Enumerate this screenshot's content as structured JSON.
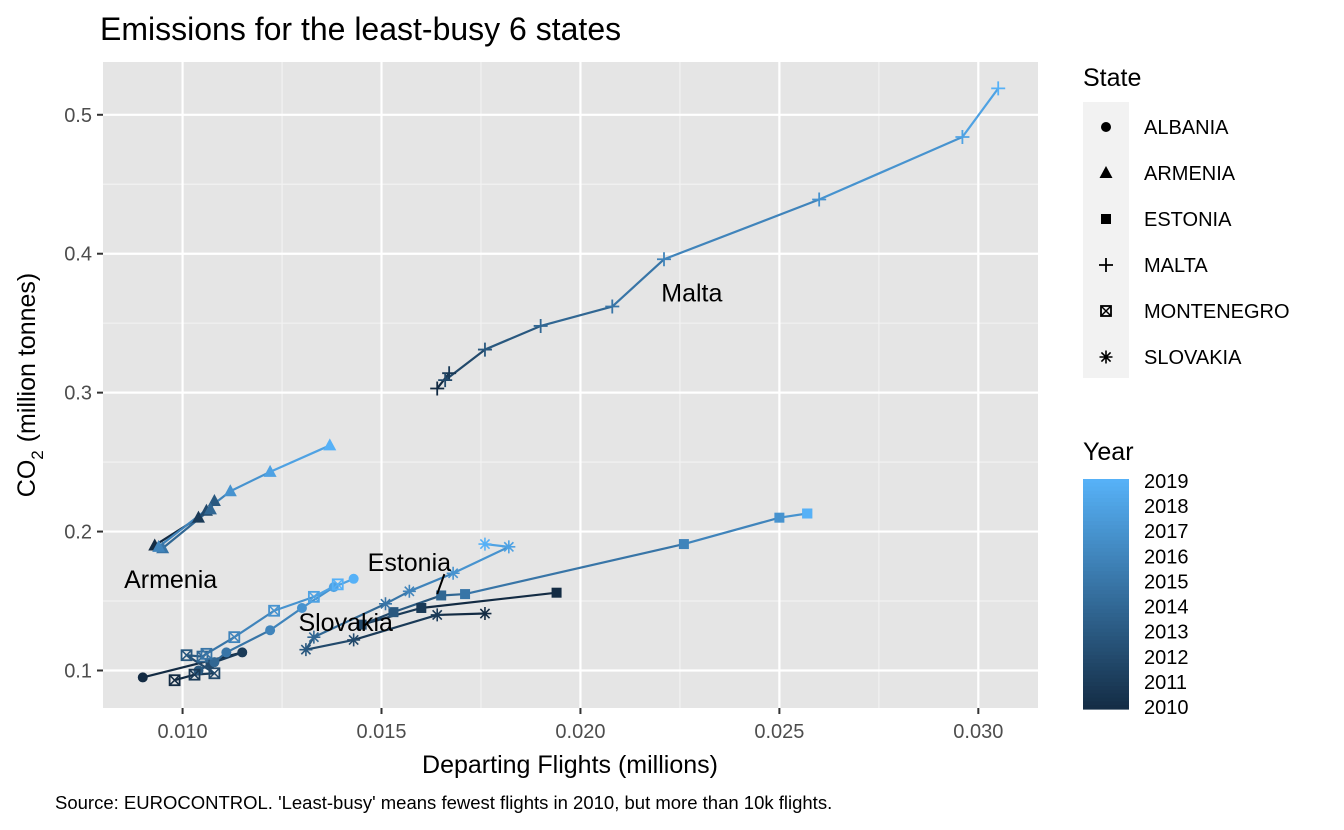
{
  "chart_data": {
    "type": "line",
    "title": "Emissions for the least-busy 6 states",
    "xlabel": "Departing Flights (millions)",
    "ylabel_prefix": "CO",
    "ylabel_sub": "2",
    "ylabel_suffix": "(million tonnes)",
    "caption": "Source: EUROCONTROL. 'Least-busy' means fewest flights in 2010, but more than 10k flights.",
    "xlim": [
      0.008,
      0.0315
    ],
    "ylim": [
      0.073,
      0.538
    ],
    "x_ticks": [
      0.01,
      0.015,
      0.02,
      0.025,
      0.03
    ],
    "x_tick_labels": [
      "0.010",
      "0.015",
      "0.020",
      "0.025",
      "0.030"
    ],
    "y_ticks": [
      0.1,
      0.2,
      0.3,
      0.4,
      0.5
    ],
    "y_tick_labels": [
      "0.1",
      "0.2",
      "0.3",
      "0.4",
      "0.5"
    ],
    "grid": true,
    "shape_legend": {
      "title": "State",
      "entries": [
        {
          "label": "ALBANIA",
          "shape": "circle"
        },
        {
          "label": "ARMENIA",
          "shape": "triangle"
        },
        {
          "label": "ESTONIA",
          "shape": "square"
        },
        {
          "label": "MALTA",
          "shape": "plus"
        },
        {
          "label": "MONTENEGRO",
          "shape": "square-cross"
        },
        {
          "label": "SLOVAKIA",
          "shape": "asterisk"
        }
      ]
    },
    "color_legend": {
      "title": "Year",
      "years": [
        "2019",
        "2018",
        "2017",
        "2016",
        "2015",
        "2014",
        "2013",
        "2012",
        "2011",
        "2010"
      ],
      "low_color": "#132b43",
      "high_color": "#56b1f7"
    },
    "annotations": [
      {
        "text": "Malta",
        "x": 0.0228,
        "y": 0.372
      },
      {
        "text": "Armenia",
        "x": 0.0097,
        "y": 0.166
      },
      {
        "text": "Estonia",
        "x": 0.0157,
        "y": 0.178,
        "arrow_to": [
          0.0164,
          0.155
        ]
      },
      {
        "text": "Slovakia",
        "x": 0.0141,
        "y": 0.135
      }
    ],
    "series": [
      {
        "name": "ALBANIA",
        "shape": "circle",
        "years": [
          2010,
          2011,
          2012,
          2013,
          2014,
          2015,
          2016,
          2017,
          2018,
          2019
        ],
        "x": [
          0.009,
          0.0115,
          0.0107,
          0.0104,
          0.0108,
          0.0111,
          0.0122,
          0.013,
          0.0138,
          0.0143
        ],
        "y": [
          0.095,
          0.113,
          0.105,
          0.1,
          0.106,
          0.113,
          0.129,
          0.145,
          0.16,
          0.166
        ]
      },
      {
        "name": "ARMENIA",
        "shape": "triangle",
        "years": [
          2010,
          2011,
          2012,
          2013,
          2014,
          2015,
          2016,
          2017,
          2018,
          2019
        ],
        "x": [
          0.0093,
          0.0104,
          0.0106,
          0.0108,
          0.0107,
          0.0095,
          0.0094,
          0.0112,
          0.0122,
          0.0137
        ],
        "y": [
          0.19,
          0.21,
          0.215,
          0.222,
          0.216,
          0.188,
          0.189,
          0.229,
          0.243,
          0.262
        ]
      },
      {
        "name": "ESTONIA",
        "shape": "square",
        "years": [
          2010,
          2011,
          2012,
          2013,
          2014,
          2015,
          2016,
          2017,
          2018,
          2019
        ],
        "x": [
          0.0194,
          0.016,
          0.0145,
          0.0153,
          0.0165,
          0.0171,
          0.0226,
          0.025,
          0.0257,
          0.0257
        ],
        "y": [
          0.156,
          0.145,
          0.133,
          0.142,
          0.154,
          0.155,
          0.191,
          0.21,
          0.213,
          0.213
        ]
      },
      {
        "name": "MALTA",
        "shape": "plus",
        "years": [
          2010,
          2011,
          2012,
          2013,
          2014,
          2015,
          2016,
          2017,
          2018,
          2019
        ],
        "x": [
          0.0164,
          0.0167,
          0.0166,
          0.0176,
          0.019,
          0.0208,
          0.0221,
          0.026,
          0.0296,
          0.0305
        ],
        "y": [
          0.303,
          0.314,
          0.309,
          0.331,
          0.348,
          0.362,
          0.396,
          0.439,
          0.484,
          0.519
        ]
      },
      {
        "name": "MONTENEGRO",
        "shape": "square-cross",
        "years": [
          2010,
          2011,
          2012,
          2013,
          2014,
          2015,
          2016,
          2017,
          2018,
          2019
        ],
        "x": [
          0.0098,
          0.0103,
          0.0108,
          0.0101,
          0.0105,
          0.0106,
          0.0113,
          0.0123,
          0.0133,
          0.0139
        ],
        "y": [
          0.093,
          0.097,
          0.098,
          0.111,
          0.11,
          0.112,
          0.124,
          0.143,
          0.153,
          0.162
        ]
      },
      {
        "name": "SLOVAKIA",
        "shape": "asterisk",
        "years": [
          2010,
          2011,
          2012,
          2013,
          2014,
          2015,
          2016,
          2017,
          2018,
          2019
        ],
        "x": [
          0.0176,
          0.0164,
          0.0143,
          0.0131,
          0.0133,
          0.0151,
          0.0157,
          0.0168,
          0.0182,
          0.0176
        ],
        "y": [
          0.141,
          0.14,
          0.122,
          0.115,
          0.124,
          0.148,
          0.157,
          0.17,
          0.189,
          0.191
        ]
      }
    ]
  }
}
